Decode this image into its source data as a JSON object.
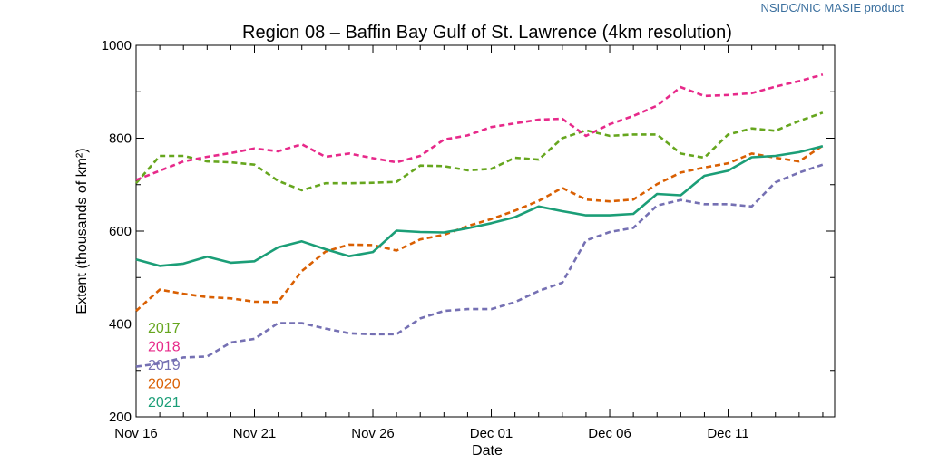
{
  "credit": {
    "text": "NSIDC/NIC MASIE product",
    "color": "#3a6f9e"
  },
  "chart_data": {
    "type": "line",
    "title": "Region 08 – Baffin Bay Gulf of St. Lawrence (4km resolution)",
    "xlabel": "Date",
    "ylabel": "Extent (thousands of km²)",
    "ylim": [
      200,
      1000
    ],
    "yticks": [
      200,
      400,
      600,
      800,
      1000
    ],
    "xlim": [
      0,
      29.5
    ],
    "xticks": [
      {
        "value": 0,
        "label": "Nov 16"
      },
      {
        "value": 5,
        "label": "Nov 21"
      },
      {
        "value": 10,
        "label": "Nov 26"
      },
      {
        "value": 15,
        "label": "Dec 01"
      },
      {
        "value": 20,
        "label": "Dec 06"
      },
      {
        "value": 25,
        "label": "Dec 11"
      }
    ],
    "x": [
      0,
      1,
      2,
      3,
      4,
      5,
      6,
      7,
      8,
      9,
      10,
      11,
      12,
      13,
      14,
      15,
      16,
      17,
      18,
      19,
      20,
      21,
      22,
      23,
      24,
      25,
      26,
      27,
      28,
      29
    ],
    "legend_position": "bottom-left",
    "series": [
      {
        "name": "2017",
        "color": "#66a61e",
        "dash": true,
        "values": [
          703,
          762,
          762,
          750,
          748,
          743,
          708,
          688,
          703,
          703,
          704,
          706,
          741,
          740,
          731,
          734,
          758,
          754,
          800,
          817,
          805,
          808,
          808,
          767,
          758,
          808,
          821,
          816,
          837,
          855
        ]
      },
      {
        "name": "2018",
        "color": "#e7298a",
        "dash": true,
        "values": [
          710,
          730,
          750,
          760,
          768,
          778,
          772,
          787,
          760,
          767,
          757,
          748,
          762,
          797,
          806,
          824,
          832,
          840,
          842,
          805,
          830,
          848,
          870,
          910,
          891,
          893,
          897,
          911,
          923,
          937
        ]
      },
      {
        "name": "2019",
        "color": "#7570b3",
        "dash": true,
        "values": [
          308,
          315,
          328,
          330,
          360,
          368,
          402,
          402,
          390,
          380,
          378,
          378,
          412,
          428,
          432,
          432,
          447,
          471,
          489,
          580,
          598,
          607,
          655,
          667,
          658,
          658,
          653,
          705,
          726,
          743
        ]
      },
      {
        "name": "2020",
        "color": "#d95f02",
        "dash": true,
        "values": [
          428,
          474,
          465,
          458,
          455,
          448,
          447,
          514,
          556,
          571,
          570,
          558,
          582,
          592,
          611,
          626,
          644,
          665,
          693,
          668,
          664,
          668,
          701,
          726,
          737,
          746,
          767,
          758,
          750,
          784
        ]
      },
      {
        "name": "2021",
        "color": "#1b9e77",
        "dash": false,
        "values": [
          539,
          525,
          530,
          545,
          532,
          535,
          565,
          578,
          561,
          546,
          555,
          601,
          598,
          597,
          606,
          617,
          630,
          653,
          643,
          634,
          634,
          637,
          680,
          677,
          719,
          730,
          759,
          762,
          770,
          783
        ]
      }
    ]
  }
}
